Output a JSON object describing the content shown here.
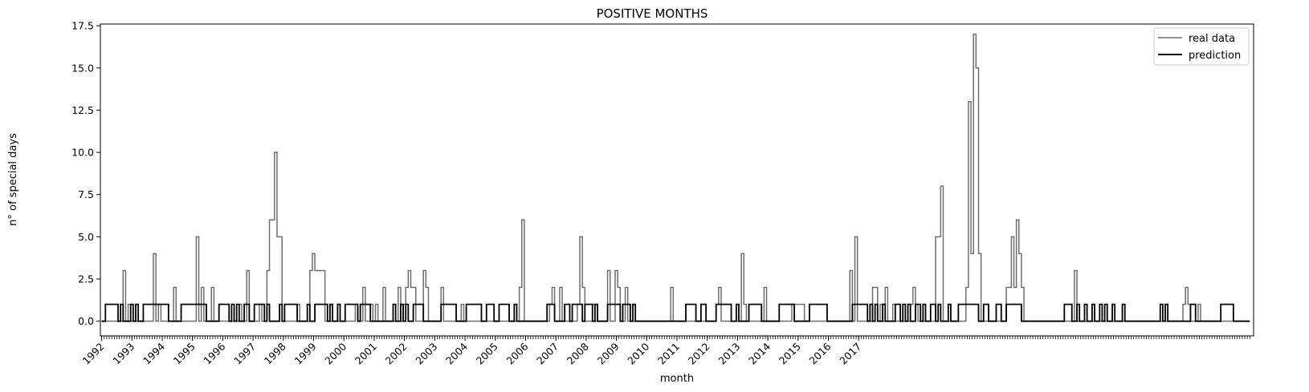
{
  "chart_data": {
    "type": "line",
    "title": "POSITIVE MONTHS",
    "xlabel": "month",
    "ylabel": "n° of special days",
    "x_start": "1992-01",
    "x_end": "2017-12",
    "xticks": [
      "1992",
      "1993",
      "1994",
      "1995",
      "1996",
      "1997",
      "1998",
      "1999",
      "2000",
      "2001",
      "2002",
      "2003",
      "2004",
      "2005",
      "2006",
      "2007",
      "2008",
      "2009",
      "2010",
      "2011",
      "2012",
      "2013",
      "2014",
      "2015",
      "2016",
      "2017"
    ],
    "ylim": [
      -0.87,
      17.6
    ],
    "yticks": [
      0.0,
      2.5,
      5.0,
      7.5,
      10.0,
      12.5,
      15.0,
      17.5
    ],
    "ytick_labels": [
      "0.0",
      "2.5",
      "5.0",
      "7.5",
      "10.0",
      "12.5",
      "15.0",
      "17.5"
    ],
    "grid": false,
    "legend_position": "top-right",
    "series": [
      {
        "name": "real data",
        "color": "#6e6e6e",
        "values": [
          0,
          0,
          0,
          0,
          0,
          0,
          0,
          0,
          0,
          3,
          0,
          1,
          0,
          0,
          0,
          0,
          0,
          0,
          0,
          0,
          0,
          4,
          0,
          1,
          0,
          0,
          0,
          0,
          0,
          2,
          0,
          0,
          0,
          0,
          0,
          0,
          0,
          0,
          5,
          0,
          2,
          0,
          0,
          0,
          2,
          0,
          0,
          0,
          0,
          0,
          0,
          0,
          0,
          0,
          0,
          1,
          0,
          0,
          3,
          0,
          0,
          0,
          0,
          1,
          0,
          0,
          3,
          6,
          6,
          10,
          5,
          5,
          0,
          0,
          0,
          0,
          0,
          0,
          1,
          0,
          0,
          0,
          0,
          3,
          4,
          3,
          3,
          3,
          3,
          0,
          0,
          0,
          0,
          0,
          0,
          0,
          0,
          0,
          0,
          0,
          0,
          1,
          0,
          0,
          2,
          0,
          0,
          1,
          0,
          1,
          0,
          0,
          2,
          0,
          0,
          0,
          0,
          0,
          2,
          0,
          1,
          2,
          3,
          2,
          2,
          0,
          0,
          0,
          3,
          2,
          0,
          0,
          0,
          0,
          0,
          2,
          0,
          0,
          0,
          0,
          0,
          0,
          0,
          1,
          0,
          0,
          0,
          0,
          0,
          0,
          0,
          0,
          0,
          0,
          0,
          0,
          0,
          0,
          0,
          0,
          0,
          0,
          0,
          0,
          0,
          0,
          2,
          6,
          0,
          0,
          0,
          0,
          0,
          0,
          0,
          0,
          0,
          0,
          1,
          2,
          0,
          0,
          2,
          0,
          0,
          0,
          0,
          0,
          0,
          1,
          5,
          2,
          0,
          0,
          0,
          1,
          0,
          0,
          0,
          0,
          0,
          3,
          0,
          0,
          3,
          2,
          0,
          0,
          2,
          0,
          0,
          0,
          0,
          0,
          0,
          0,
          0,
          0,
          0,
          0,
          0,
          0,
          0,
          0,
          0,
          0,
          2,
          0,
          0,
          0,
          0,
          0,
          0,
          0,
          0,
          0,
          0,
          0,
          0,
          0,
          0,
          0,
          0,
          0,
          1,
          2,
          0,
          0,
          0,
          0,
          0,
          0,
          0,
          0,
          4,
          1,
          0,
          0,
          0,
          0,
          0,
          0,
          0,
          2,
          0,
          0,
          0,
          0,
          0,
          0,
          0,
          0,
          0,
          0,
          1,
          1,
          1,
          1,
          1,
          0,
          0,
          0,
          0,
          0,
          0,
          0,
          0,
          0,
          0,
          0,
          0,
          0,
          0,
          0,
          0,
          0,
          0,
          3,
          0,
          5,
          0,
          0,
          0,
          0,
          0,
          0,
          2,
          2,
          0,
          1,
          0,
          2,
          0,
          0,
          1,
          0,
          0,
          0,
          0,
          0,
          0,
          1,
          2,
          1,
          0,
          0,
          0,
          0,
          0,
          0,
          0,
          5,
          5,
          8,
          0,
          0,
          0,
          0,
          0,
          0,
          0,
          0,
          0,
          2,
          13,
          4,
          17,
          15,
          4,
          0,
          0,
          0,
          0,
          0,
          0,
          0,
          0,
          0,
          0,
          2,
          2,
          5,
          2,
          6,
          4,
          2,
          0,
          0,
          0,
          0,
          0,
          0,
          0,
          0,
          0,
          0,
          0,
          0,
          0,
          0,
          0,
          0,
          0,
          0,
          0,
          0,
          3,
          0,
          0,
          0,
          0,
          0,
          0,
          0,
          0,
          0,
          0,
          0,
          0,
          0,
          0,
          0,
          0,
          0,
          0,
          0,
          0,
          0,
          0,
          0,
          0,
          0,
          0,
          0,
          0,
          0,
          0,
          0,
          0,
          0,
          0,
          0,
          0,
          0,
          0,
          0,
          0,
          0,
          0,
          1,
          2,
          1,
          0,
          0,
          0,
          1,
          0,
          0,
          0,
          0,
          0,
          0,
          0,
          0,
          0,
          0,
          0,
          0,
          0,
          0,
          0,
          0,
          0,
          0,
          0,
          0
        ]
      },
      {
        "name": "prediction",
        "color": "#000000",
        "values": [
          0,
          0,
          1,
          1,
          1,
          1,
          1,
          0,
          1,
          0,
          0,
          0,
          1,
          0,
          1,
          0,
          0,
          1,
          1,
          1,
          1,
          1,
          1,
          1,
          1,
          1,
          1,
          0,
          0,
          0,
          0,
          0,
          1,
          1,
          1,
          1,
          1,
          1,
          1,
          1,
          1,
          1,
          0,
          0,
          0,
          0,
          0,
          1,
          1,
          1,
          1,
          0,
          1,
          0,
          1,
          0,
          0,
          1,
          1,
          0,
          0,
          1,
          1,
          1,
          1,
          0,
          1,
          0,
          0,
          0,
          0,
          1,
          0,
          1,
          1,
          1,
          1,
          1,
          0,
          0,
          0,
          0,
          1,
          0,
          0,
          1,
          1,
          1,
          1,
          1,
          0,
          1,
          0,
          0,
          1,
          0,
          0,
          1,
          1,
          1,
          1,
          1,
          0,
          1,
          1,
          1,
          1,
          0,
          0,
          0,
          0,
          0,
          0,
          0,
          0,
          0,
          1,
          0,
          0,
          1,
          0,
          1,
          0,
          0,
          1,
          1,
          1,
          1,
          0,
          0,
          0,
          0,
          0,
          0,
          0,
          1,
          1,
          1,
          1,
          1,
          1,
          0,
          0,
          0,
          0,
          1,
          1,
          1,
          1,
          1,
          1,
          0,
          0,
          1,
          1,
          1,
          0,
          0,
          1,
          1,
          1,
          1,
          0,
          0,
          1,
          0,
          0,
          0,
          0,
          0,
          0,
          0,
          0,
          0,
          0,
          0,
          0,
          1,
          1,
          1,
          0,
          0,
          0,
          0,
          1,
          1,
          0,
          1,
          1,
          1,
          1,
          0,
          1,
          1,
          1,
          0,
          1,
          0,
          0,
          0,
          0,
          1,
          1,
          1,
          1,
          1,
          0,
          1,
          1,
          1,
          0,
          1,
          0,
          0,
          0,
          0,
          0,
          0,
          0,
          0,
          0,
          0,
          0,
          0,
          0,
          0,
          0,
          0,
          0,
          0,
          0,
          0,
          1,
          1,
          1,
          1,
          0,
          0,
          1,
          1,
          0,
          0,
          0,
          0,
          1,
          1,
          1,
          1,
          1,
          1,
          0,
          0,
          1,
          0,
          0,
          0,
          0,
          1,
          1,
          1,
          1,
          1,
          0,
          0,
          0,
          0,
          0,
          0,
          0,
          1,
          1,
          1,
          1,
          1,
          1,
          0,
          0,
          0,
          0,
          0,
          0,
          1,
          1,
          1,
          1,
          1,
          1,
          1,
          0,
          0,
          0,
          0,
          0,
          0,
          0,
          0,
          0,
          0,
          1,
          1,
          1,
          1,
          1,
          1,
          0,
          1,
          0,
          1,
          0,
          0,
          1,
          0,
          0,
          0,
          0,
          1,
          1,
          0,
          1,
          0,
          1,
          0,
          0,
          1,
          1,
          0,
          1,
          0,
          0,
          1,
          1,
          0,
          1,
          0,
          0,
          0,
          1,
          0,
          0,
          0,
          1,
          1,
          1,
          1,
          1,
          1,
          1,
          1,
          0,
          0,
          1,
          1,
          0,
          0,
          0,
          1,
          1,
          0,
          0,
          1,
          1,
          1,
          1,
          1,
          1,
          0,
          0,
          0,
          0,
          0,
          0,
          0,
          0,
          0,
          0,
          0,
          0,
          0,
          0,
          0,
          0,
          0,
          1,
          1,
          1,
          0,
          0,
          1,
          0,
          0,
          1,
          0,
          0,
          1,
          0,
          0,
          1,
          0,
          1,
          0,
          0,
          1,
          0,
          0,
          0,
          1,
          0,
          0,
          0,
          0,
          0,
          0,
          0,
          0,
          0,
          0,
          0,
          0,
          0,
          0,
          1,
          0,
          1,
          0,
          0,
          0,
          0,
          0,
          0,
          0,
          0,
          0,
          1,
          1,
          0,
          0,
          0,
          0,
          0,
          0,
          0,
          0,
          0,
          0,
          1,
          1,
          1,
          1,
          1,
          0,
          0,
          0,
          0,
          0,
          0,
          0
        ]
      }
    ]
  }
}
